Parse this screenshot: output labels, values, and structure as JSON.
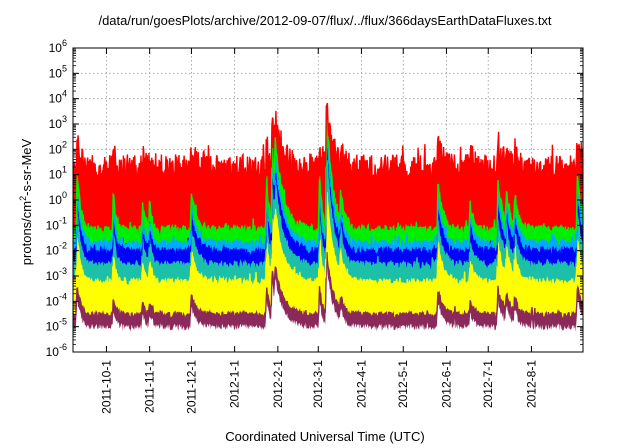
{
  "chart_data": {
    "type": "line",
    "title": "/data/run/goesPlots/archive/2012-09-07/flux/../flux/366daysEarthDataFluxes.txt",
    "xlabel": "Coordinated Universal Time (UTC)",
    "ylabel_parts": {
      "before": "protons/cm",
      "sup": "2",
      "after": "-s-sr-MeV"
    },
    "y_scale": "log",
    "ylim_exp": [
      -6,
      6
    ],
    "y_tick_exponents": [
      -6,
      -5,
      -4,
      -3,
      -2,
      -1,
      0,
      1,
      2,
      3,
      4,
      5,
      6
    ],
    "x_range_days": [
      0,
      366
    ],
    "x_ticks": [
      {
        "label": "2011-10-1",
        "day": 24
      },
      {
        "label": "2011-11-1",
        "day": 55
      },
      {
        "label": "2011-12-1",
        "day": 85
      },
      {
        "label": "2012-1-1",
        "day": 116
      },
      {
        "label": "2012-2-1",
        "day": 147
      },
      {
        "label": "2012-3-1",
        "day": 176
      },
      {
        "label": "2012-4-1",
        "day": 207
      },
      {
        "label": "2012-5-1",
        "day": 237
      },
      {
        "label": "2012-6-1",
        "day": 268
      },
      {
        "label": "2012-7-1",
        "day": 298
      },
      {
        "label": "2012-8-1",
        "day": 329
      }
    ],
    "grid": true,
    "events": [
      {
        "day": 3,
        "amp": 2.2,
        "w": 2.5
      },
      {
        "day": 29,
        "amp": 1.3,
        "w": 2.0
      },
      {
        "day": 50,
        "amp": 0.9,
        "w": 2.0
      },
      {
        "day": 55,
        "amp": 1.0,
        "w": 2.0
      },
      {
        "day": 85,
        "amp": 1.4,
        "w": 4.0
      },
      {
        "day": 139,
        "amp": 2.0,
        "w": 2.0
      },
      {
        "day": 143,
        "amp": 3.2,
        "w": 3.5
      },
      {
        "day": 145,
        "amp": 3.5,
        "w": 6.0
      },
      {
        "day": 177,
        "amp": 2.0,
        "w": 2.0
      },
      {
        "day": 182,
        "amp": 4.5,
        "w": 4.5
      },
      {
        "day": 185,
        "amp": 2.0,
        "w": 4.0
      },
      {
        "day": 192,
        "amp": 1.5,
        "w": 3.0
      },
      {
        "day": 262,
        "amp": 1.8,
        "w": 3.5
      },
      {
        "day": 285,
        "amp": 1.0,
        "w": 3.0
      },
      {
        "day": 305,
        "amp": 1.9,
        "w": 3.5
      },
      {
        "day": 311,
        "amp": 1.6,
        "w": 3.5
      },
      {
        "day": 317,
        "amp": 1.4,
        "w": 3.0
      },
      {
        "day": 362,
        "amp": 2.1,
        "w": 3.5
      }
    ],
    "series": [
      {
        "color": "#8b2a5a",
        "base": -4.55,
        "noise": 0.13,
        "resp": 0.55
      },
      {
        "color": "#ffff00",
        "base": -3.25,
        "noise": 0.16,
        "resp": 0.85
      },
      {
        "color": "#1cc0a8",
        "base": -2.6,
        "noise": 0.18,
        "resp": 1.0
      },
      {
        "color": "#0000ff",
        "base": -2.05,
        "noise": 0.22,
        "resp": 1.05
      },
      {
        "color": "#00aaff",
        "base": -1.75,
        "noise": 0.2,
        "resp": 1.0
      },
      {
        "color": "#00ee00",
        "base": -1.2,
        "noise": 0.2,
        "resp": 1.05
      },
      {
        "color": "#ff0000",
        "base": 1.25,
        "noise": 0.55,
        "resp": 0.55
      }
    ]
  }
}
